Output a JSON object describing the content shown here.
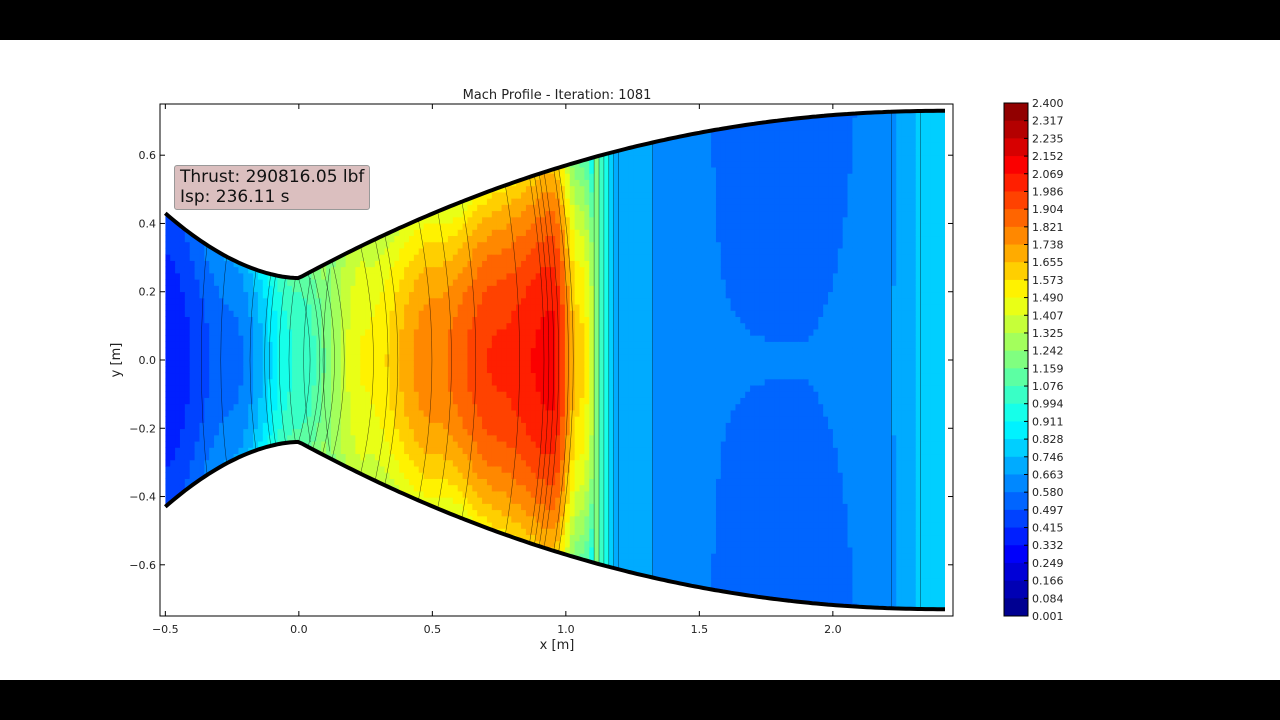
{
  "chart_data": {
    "type": "contour",
    "title": "Mach Profile - Iteration: 1081",
    "xlabel": "x [m]",
    "ylabel": "y [m]",
    "xlim": [
      -0.52,
      2.45
    ],
    "ylim": [
      -0.75,
      0.75
    ],
    "x_ticks": [
      "−0.5",
      "0.0",
      "0.5",
      "1.0",
      "1.5",
      "2.0"
    ],
    "x_tick_values": [
      -0.5,
      0.0,
      0.5,
      1.0,
      1.5,
      2.0
    ],
    "y_ticks": [
      "0.6",
      "0.4",
      "0.2",
      "0.0",
      "−0.2",
      "−0.4",
      "−0.6"
    ],
    "y_tick_values": [
      0.6,
      0.4,
      0.2,
      0.0,
      -0.2,
      -0.4,
      -0.6
    ],
    "annotation": {
      "thrust": "Thrust: 290816.05 lbf",
      "isp": "Isp: 236.11 s"
    },
    "colorbar": {
      "levels": [
        "2.400",
        "2.317",
        "2.235",
        "2.152",
        "2.069",
        "1.986",
        "1.904",
        "1.821",
        "1.738",
        "1.655",
        "1.573",
        "1.490",
        "1.407",
        "1.325",
        "1.242",
        "1.159",
        "1.076",
        "0.994",
        "0.911",
        "0.828",
        "0.746",
        "0.663",
        "0.580",
        "0.497",
        "0.415",
        "0.332",
        "0.249",
        "0.166",
        "0.084",
        "0.001"
      ],
      "min": 0.001,
      "max": 2.4
    },
    "nozzle_wall": {
      "inlet_x": -0.5,
      "inlet_r": 0.43,
      "throat_x": 0.0,
      "throat_r": 0.24,
      "exit_x": 2.42,
      "exit_r": 0.73
    },
    "centerline_mach": [
      {
        "x": -0.5,
        "m": 0.35
      },
      {
        "x": -0.25,
        "m": 0.55
      },
      {
        "x": 0.0,
        "m": 1.0
      },
      {
        "x": 0.25,
        "m": 1.5
      },
      {
        "x": 0.5,
        "m": 1.8
      },
      {
        "x": 0.75,
        "m": 2.0
      },
      {
        "x": 0.95,
        "m": 2.1
      },
      {
        "x": 1.05,
        "m": 1.6
      },
      {
        "x": 1.2,
        "m": 0.7
      },
      {
        "x": 1.5,
        "m": 0.6
      },
      {
        "x": 1.85,
        "m": 0.6
      },
      {
        "x": 2.2,
        "m": 0.66
      },
      {
        "x": 2.42,
        "m": 0.82
      }
    ]
  }
}
